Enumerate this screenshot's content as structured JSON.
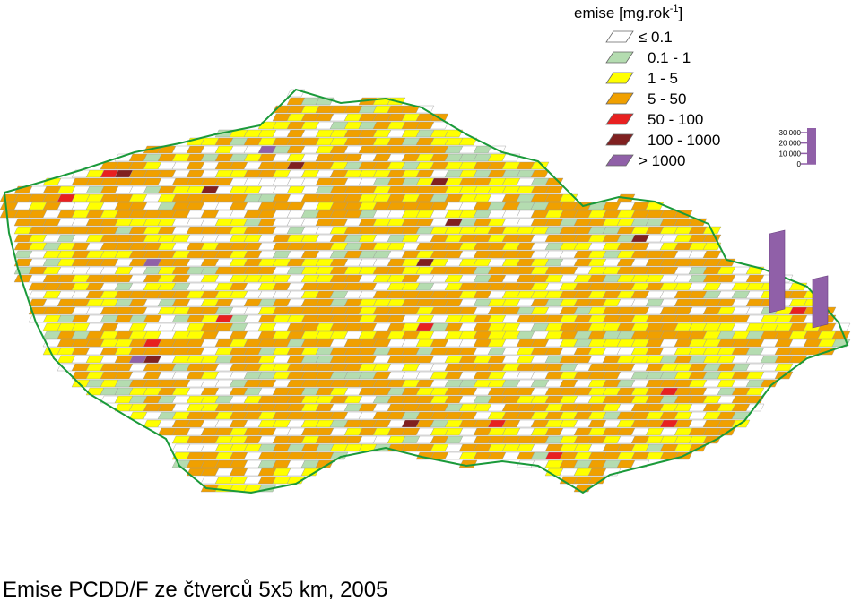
{
  "legend": {
    "title": "emise [mg.rok",
    "title_sup": "-1",
    "title_end": "]",
    "items": [
      {
        "label": "≤ 0.1",
        "color": "#ffffff"
      },
      {
        "label": "0.1 - 1",
        "color": "#b4dcb0"
      },
      {
        "label": "1 - 5",
        "color": "#ffff00"
      },
      {
        "label": "5 - 50",
        "color": "#f0a000"
      },
      {
        "label": "50 - 100",
        "color": "#e82020"
      },
      {
        "label": "100 - 1000",
        "color": "#802020"
      },
      {
        "label": "> 1000",
        "color": "#9060a8"
      }
    ]
  },
  "chart_data": {
    "type": "bar3d",
    "values": [
      72000,
      43000
    ],
    "color": "#9060a8",
    "ylim": [
      0,
      30000
    ],
    "yticks": [
      {
        "value": 30000,
        "label": "30 000"
      },
      {
        "value": 20000,
        "label": "20 000"
      },
      {
        "value": 10000,
        "label": "10 000"
      },
      0
    ]
  },
  "caption": "Emise PCDD/F ze čtverců 5x5 km, 2005"
}
